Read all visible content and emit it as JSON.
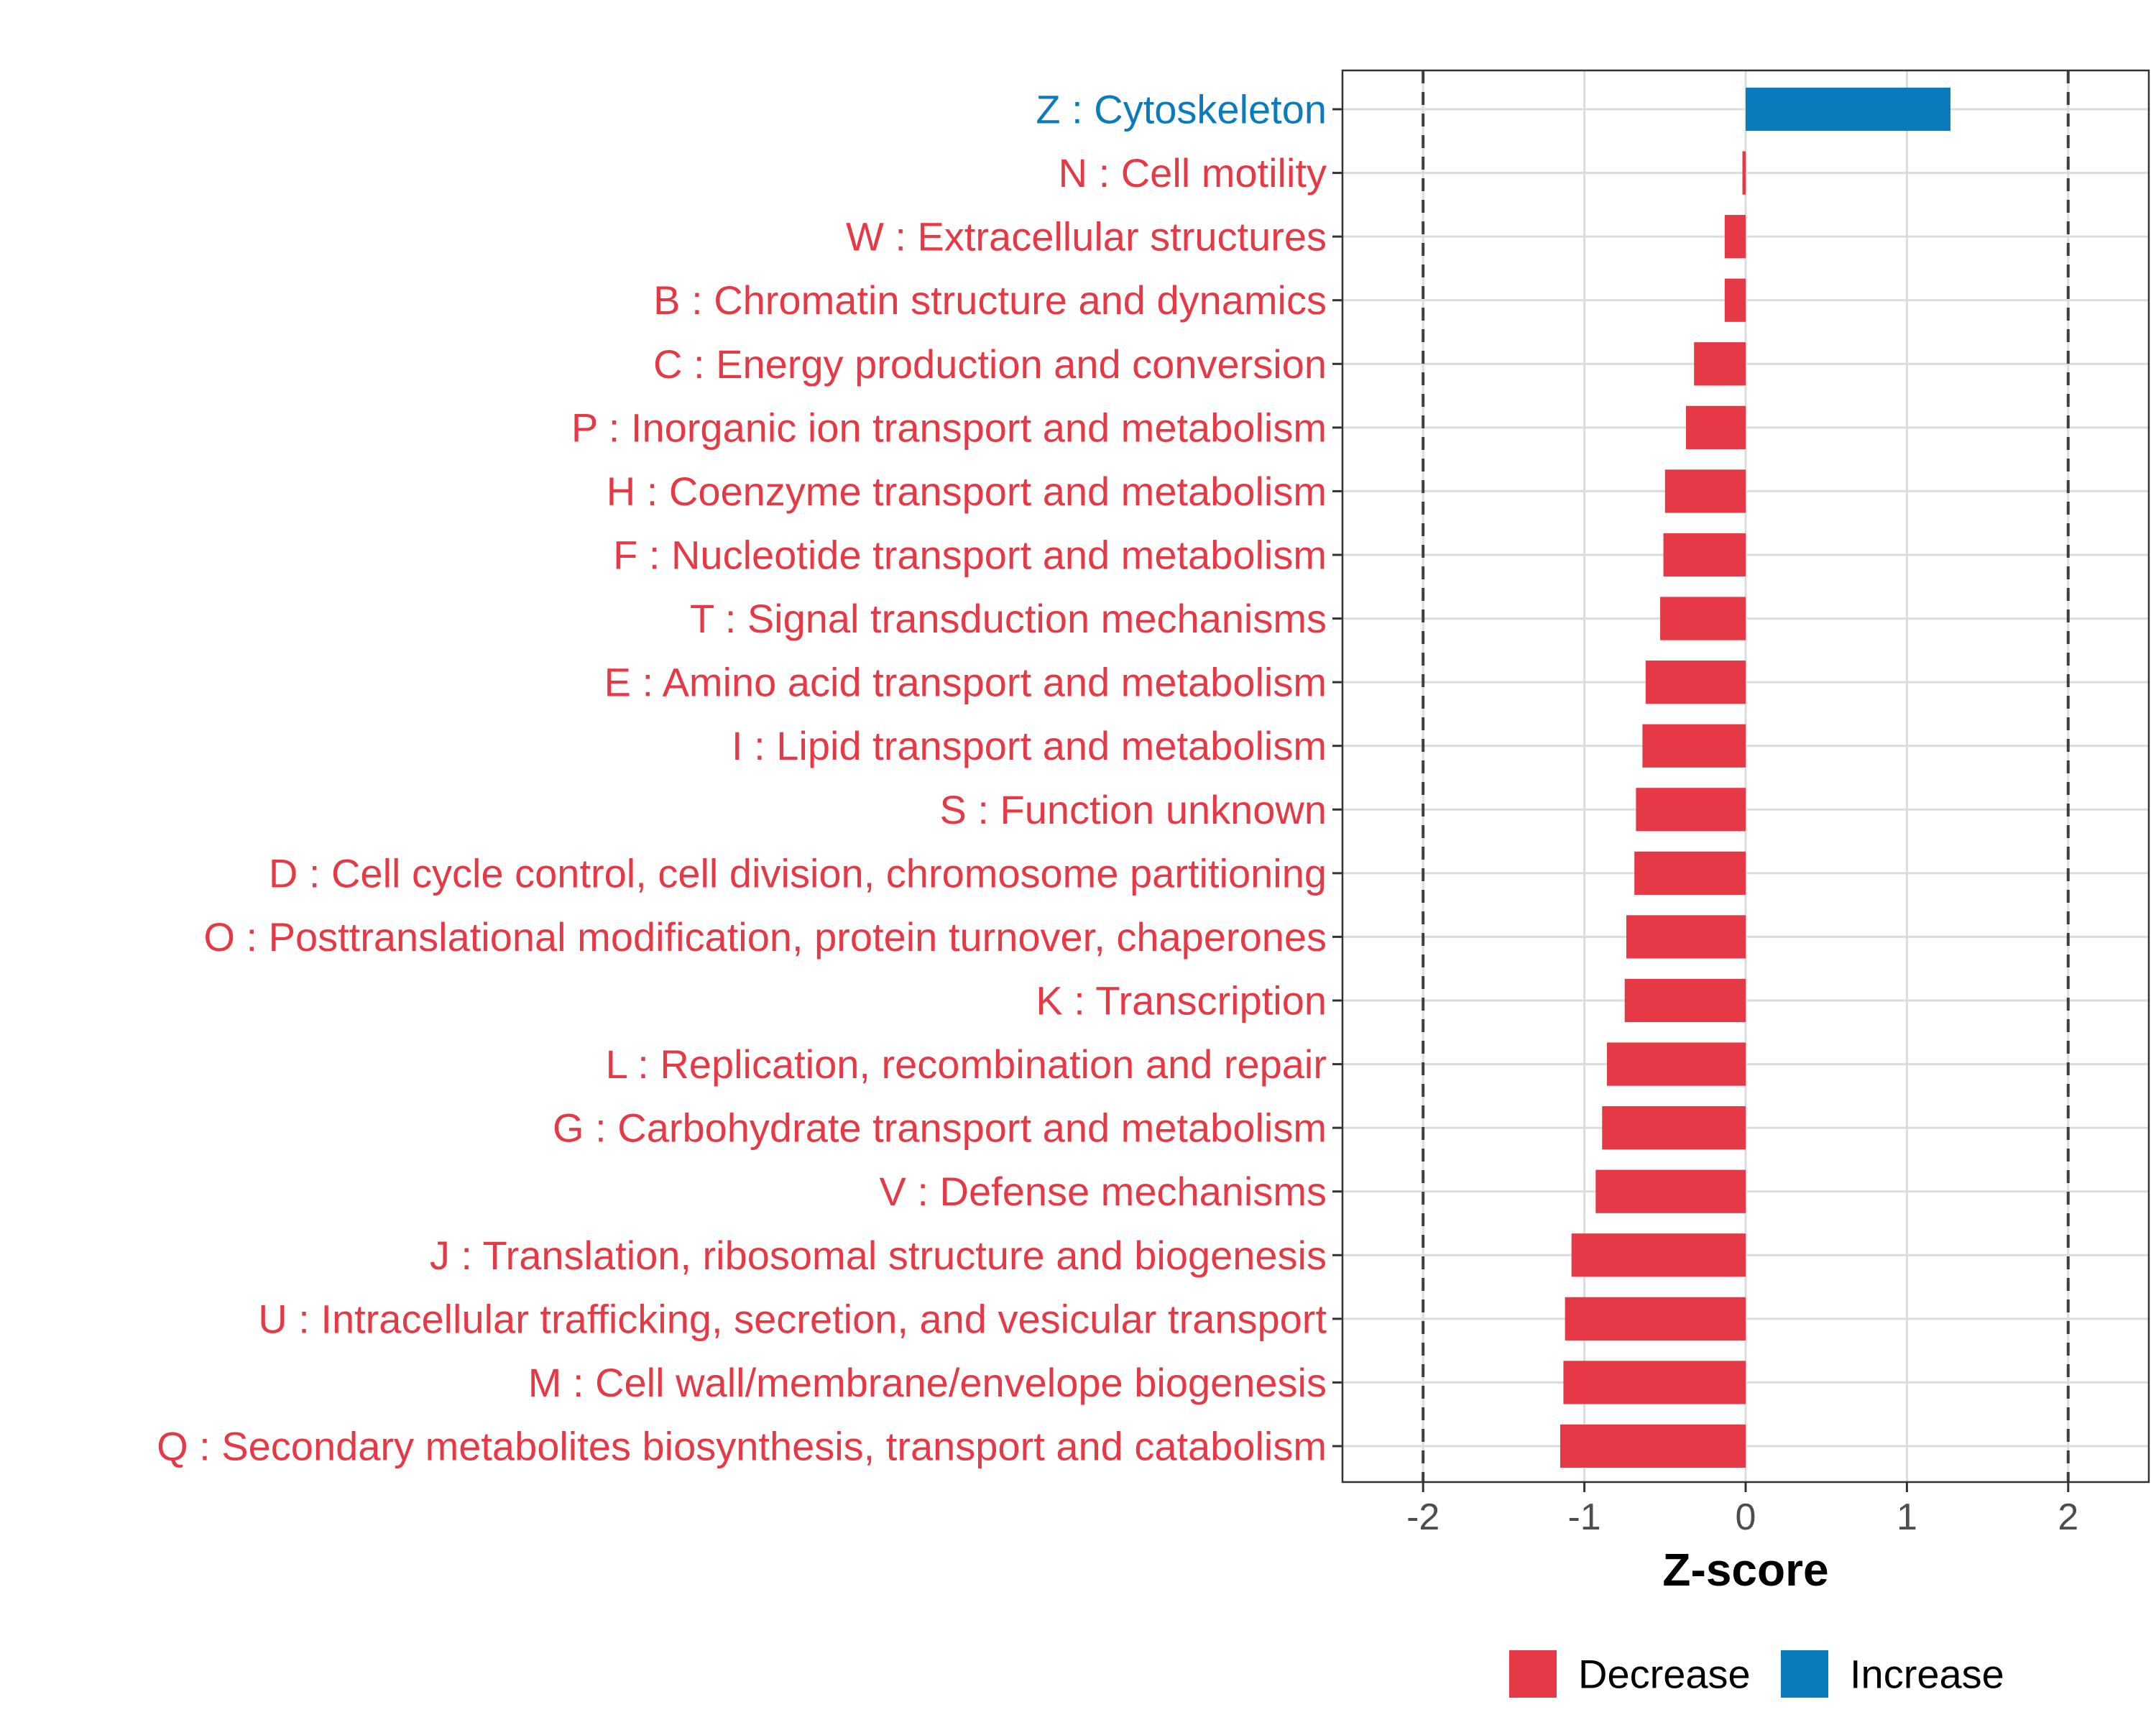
{
  "chart_data": {
    "type": "bar",
    "orientation": "horizontal",
    "xlabel": "Z-score",
    "xlim": [
      -2.5,
      2.5
    ],
    "xticks": [
      -2,
      -1,
      0,
      1,
      2
    ],
    "xtick_labels": [
      "-2",
      "-1",
      "0",
      "1",
      "2"
    ],
    "reference_lines": [
      -2,
      2
    ],
    "grid": true,
    "legend_position": "bottom",
    "colors": {
      "Decrease": "#e63946",
      "Increase": "#0a7bbd"
    },
    "categories": [
      {
        "label": "Z : Cytoskeleton",
        "value": 1.27,
        "group": "Increase"
      },
      {
        "label": "N : Cell motility",
        "value": -0.02,
        "group": "Decrease"
      },
      {
        "label": "W : Extracellular structures",
        "value": -0.13,
        "group": "Decrease"
      },
      {
        "label": "B : Chromatin structure and dynamics",
        "value": -0.13,
        "group": "Decrease"
      },
      {
        "label": "C : Energy production and conversion",
        "value": -0.32,
        "group": "Decrease"
      },
      {
        "label": "P : Inorganic ion transport and metabolism",
        "value": -0.37,
        "group": "Decrease"
      },
      {
        "label": "H : Coenzyme transport and metabolism",
        "value": -0.5,
        "group": "Decrease"
      },
      {
        "label": "F : Nucleotide transport and metabolism",
        "value": -0.51,
        "group": "Decrease"
      },
      {
        "label": "T : Signal transduction mechanisms",
        "value": -0.53,
        "group": "Decrease"
      },
      {
        "label": "E : Amino acid transport and metabolism",
        "value": -0.62,
        "group": "Decrease"
      },
      {
        "label": "I : Lipid transport and metabolism",
        "value": -0.64,
        "group": "Decrease"
      },
      {
        "label": "S : Function unknown",
        "value": -0.68,
        "group": "Decrease"
      },
      {
        "label": "D : Cell cycle control, cell division, chromosome partitioning",
        "value": -0.69,
        "group": "Decrease"
      },
      {
        "label": "O : Posttranslational modification, protein turnover, chaperones",
        "value": -0.74,
        "group": "Decrease"
      },
      {
        "label": "K : Transcription",
        "value": -0.75,
        "group": "Decrease"
      },
      {
        "label": "L : Replication, recombination and repair",
        "value": -0.86,
        "group": "Decrease"
      },
      {
        "label": "G : Carbohydrate transport and metabolism",
        "value": -0.89,
        "group": "Decrease"
      },
      {
        "label": "V : Defense mechanisms",
        "value": -0.93,
        "group": "Decrease"
      },
      {
        "label": "J : Translation, ribosomal structure and biogenesis",
        "value": -1.08,
        "group": "Decrease"
      },
      {
        "label": "U : Intracellular trafficking, secretion, and vesicular transport",
        "value": -1.12,
        "group": "Decrease"
      },
      {
        "label": "M : Cell wall/membrane/envelope biogenesis",
        "value": -1.13,
        "group": "Decrease"
      },
      {
        "label": "Q : Secondary metabolites biosynthesis, transport and catabolism",
        "value": -1.15,
        "group": "Decrease"
      }
    ],
    "legend": [
      "Decrease",
      "Increase"
    ]
  }
}
